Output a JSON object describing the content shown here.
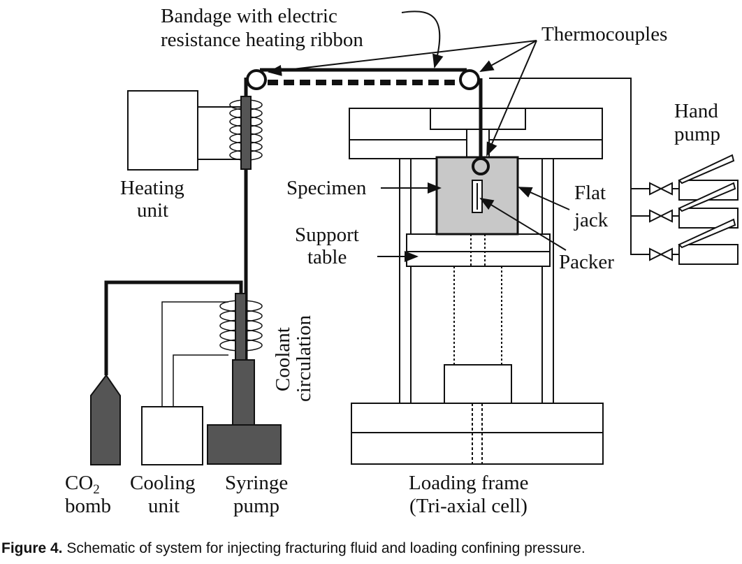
{
  "labels": {
    "bandage_line1": "Bandage with electric",
    "bandage_line2": "resistance heating ribbon",
    "thermocouples": "Thermocouples",
    "hand_pump_line1": "Hand",
    "hand_pump_line2": "pump",
    "heating_unit_line1": "Heating",
    "heating_unit_line2": "unit",
    "specimen": "Specimen",
    "flat_jack_line1": "Flat",
    "flat_jack_line2": "jack",
    "support_table_line1": "Support",
    "support_table_line2": "table",
    "packer": "Packer",
    "coolant_line1": "Coolant",
    "coolant_line2": "circulation",
    "co2_prefix": "CO",
    "co2_subscript": "2",
    "co2_line2": "bomb",
    "cooling_unit_line1": "Cooling",
    "cooling_unit_line2": "unit",
    "syringe_pump_line1": "Syringe",
    "syringe_pump_line2": "pump",
    "loading_frame_line1": "Loading frame",
    "loading_frame_line2": "(Tri-axial cell)"
  },
  "caption": {
    "prefix": "Figure 4.",
    "text": " Schematic of system for injecting fracturing fluid and loading confining pressure."
  },
  "colors": {
    "line": "#111111",
    "fill_dark": "#555555",
    "fill_specimen": "#c8c8c8"
  }
}
